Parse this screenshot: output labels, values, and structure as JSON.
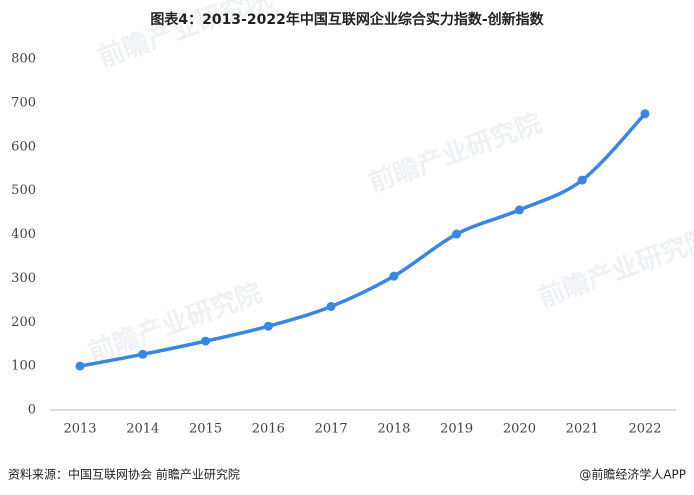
{
  "chart_data": {
    "type": "line",
    "title": "图表4：2013-2022年中国互联网企业综合实力指数-创新指数",
    "categories": [
      "2013",
      "2014",
      "2015",
      "2016",
      "2017",
      "2018",
      "2019",
      "2020",
      "2021",
      "2022"
    ],
    "series": [
      {
        "name": "创新指数",
        "color": "#3a86e0",
        "values": [
          100,
          127,
          157,
          191,
          236,
          305,
          401,
          456,
          524,
          675
        ]
      }
    ],
    "ylim": [
      0,
      800
    ],
    "yticks": [
      0,
      100,
      200,
      300,
      400,
      500,
      600,
      700,
      800
    ],
    "source": "资料来源：中国互联网协会 前瞻产业研究院",
    "credit": "@前瞻经济学人APP",
    "watermark": "前瞻产业研究院"
  }
}
